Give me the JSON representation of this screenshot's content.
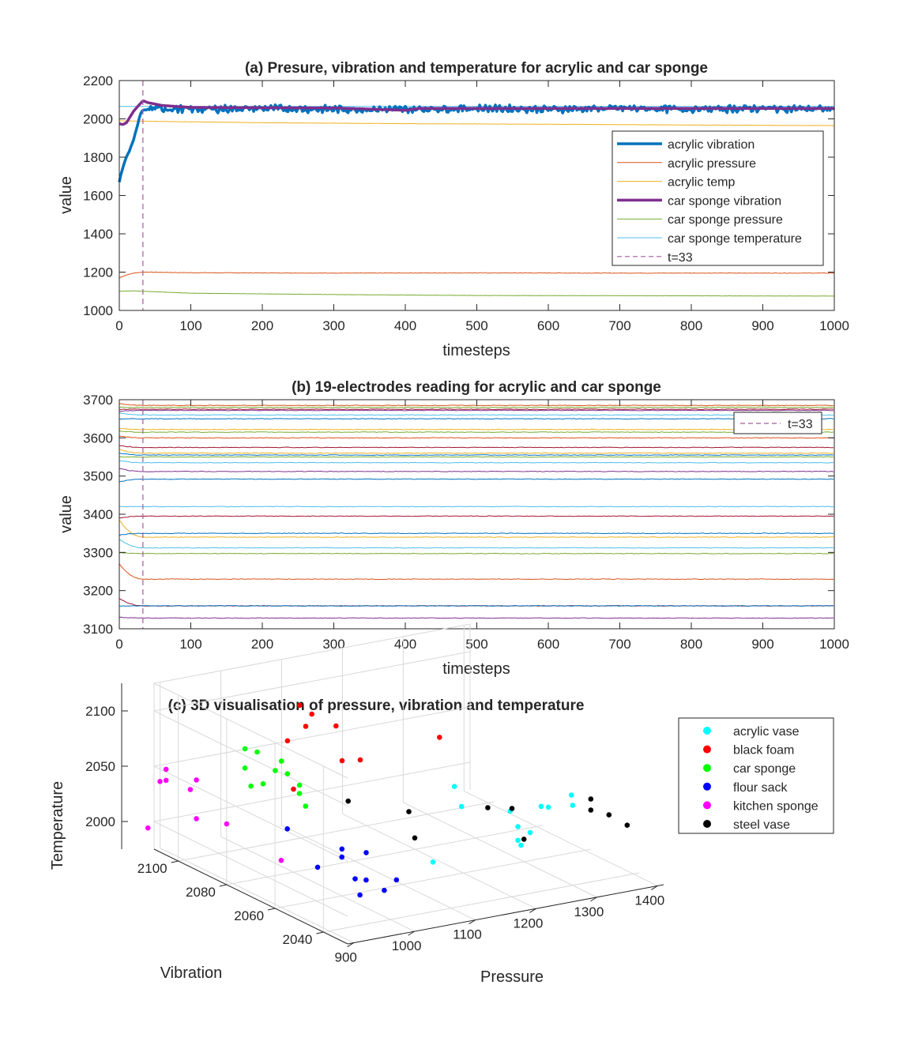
{
  "chart_data": [
    {
      "type": "line",
      "title": "(a) Presure, vibration and temperature for acrylic and car sponge",
      "xlabel": "timesteps",
      "ylabel": "value",
      "xlim": [
        0,
        1000
      ],
      "ylim": [
        1000,
        2200
      ],
      "xticks": [
        0,
        100,
        200,
        300,
        400,
        500,
        600,
        700,
        800,
        900,
        1000
      ],
      "yticks": [
        1000,
        1200,
        1400,
        1600,
        1800,
        2000,
        2200
      ],
      "legend_position": "right",
      "marker_line": {
        "x": 33,
        "label": "t=33",
        "color": "#a65ca0"
      },
      "series": [
        {
          "name": "acrylic vibration",
          "color": "#0072bd",
          "width": 3.5,
          "x": [
            0,
            5,
            10,
            15,
            20,
            25,
            30,
            33,
            40,
            50,
            100,
            200,
            300,
            400,
            500,
            600,
            700,
            800,
            900,
            1000
          ],
          "y": [
            1670,
            1750,
            1800,
            1840,
            1890,
            1960,
            2030,
            2045,
            2050,
            2055,
            2050,
            2055,
            2050,
            2050,
            2055,
            2050,
            2055,
            2050,
            2055,
            2050
          ],
          "noise": 14
        },
        {
          "name": "acrylic pressure",
          "color": "#d95319",
          "width": 1,
          "x": [
            0,
            10,
            20,
            33,
            100,
            300,
            500,
            700,
            1000
          ],
          "y": [
            1170,
            1185,
            1195,
            1200,
            1197,
            1195,
            1196,
            1195,
            1195
          ],
          "noise": 1
        },
        {
          "name": "acrylic temp",
          "color": "#edb120",
          "width": 1,
          "x": [
            0,
            33,
            200,
            400,
            600,
            800,
            1000
          ],
          "y": [
            1990,
            1988,
            1980,
            1975,
            1972,
            1968,
            1965
          ],
          "noise": 0.5
        },
        {
          "name": "car sponge vibration",
          "color": "#7e2f8e",
          "width": 3.5,
          "x": [
            0,
            5,
            10,
            20,
            33,
            40,
            60,
            100,
            200,
            300,
            400,
            420,
            500,
            600,
            700,
            800,
            900,
            1000
          ],
          "y": [
            1975,
            1970,
            1980,
            2040,
            2095,
            2085,
            2070,
            2060,
            2058,
            2057,
            2045,
            2055,
            2055,
            2055,
            2055,
            2055,
            2055,
            2055
          ],
          "noise": 0
        },
        {
          "name": "car sponge pressure",
          "color": "#77ac30",
          "width": 1,
          "x": [
            0,
            20,
            33,
            100,
            300,
            500,
            700,
            1000
          ],
          "y": [
            1100,
            1102,
            1100,
            1090,
            1083,
            1078,
            1077,
            1075
          ],
          "noise": 0.5
        },
        {
          "name": "car sponge temperature",
          "color": "#4dbeee",
          "width": 1,
          "x": [
            0,
            1000
          ],
          "y": [
            2065,
            2065
          ],
          "noise": 0
        }
      ]
    },
    {
      "type": "line",
      "title": "(b) 19-electrodes reading for acrylic and car sponge",
      "xlabel": "timesteps",
      "ylabel": "value",
      "xlim": [
        0,
        1000
      ],
      "ylim": [
        3100,
        3700
      ],
      "xticks": [
        0,
        100,
        200,
        300,
        400,
        500,
        600,
        700,
        800,
        900,
        1000
      ],
      "yticks": [
        3100,
        3200,
        3300,
        3400,
        3500,
        3600,
        3700
      ],
      "legend_position": "top-right",
      "marker_line": {
        "x": 33,
        "label": "t=33",
        "color": "#a65ca0"
      },
      "series": [
        {
          "color": "#d95319",
          "start": 3690,
          "end": 3685
        },
        {
          "color": "#77ac30",
          "start": 3680,
          "end": 3680
        },
        {
          "color": "#a2142f",
          "start": 3675,
          "end": 3675
        },
        {
          "color": "#7e2f8e",
          "start": 3670,
          "end": 3672
        },
        {
          "color": "#4dbeee",
          "start": 3665,
          "end": 3660
        },
        {
          "color": "#0072bd",
          "start": 3650,
          "end": 3650
        },
        {
          "color": "#edb120",
          "start": 3625,
          "end": 3622
        },
        {
          "color": "#77ac30",
          "start": 3618,
          "end": 3615
        },
        {
          "color": "#d95319",
          "start": 3605,
          "end": 3600
        },
        {
          "color": "#a2142f",
          "start": 3580,
          "end": 3575
        },
        {
          "color": "#edb120",
          "start": 3570,
          "end": 3560
        },
        {
          "color": "#0072bd",
          "start": 3560,
          "end": 3555
        },
        {
          "color": "#77ac30",
          "start": 3550,
          "end": 3550
        },
        {
          "color": "#4dbeee",
          "start": 3540,
          "end": 3535
        },
        {
          "color": "#7e2f8e",
          "start": 3520,
          "end": 3512
        },
        {
          "color": "#0072bd",
          "start": 3485,
          "end": 3492
        },
        {
          "color": "#4dbeee",
          "start": 3420,
          "end": 3420
        },
        {
          "color": "#a2142f",
          "start": 3390,
          "end": 3395
        },
        {
          "color": "#edb120",
          "start": 3385,
          "end": 3340
        },
        {
          "color": "#0072bd",
          "start": 3345,
          "end": 3350
        },
        {
          "color": "#4dbeee",
          "start": 3335,
          "end": 3312
        },
        {
          "color": "#77ac30",
          "start": 3300,
          "end": 3297
        },
        {
          "color": "#d95319",
          "start": 3270,
          "end": 3230
        },
        {
          "color": "#a2142f",
          "start": 3180,
          "end": 3160
        },
        {
          "color": "#0072bd",
          "start": 3160,
          "end": 3160
        },
        {
          "color": "#7e2f8e",
          "start": 3130,
          "end": 3128
        }
      ]
    },
    {
      "type": "scatter3d",
      "title": "(c) 3D visualisation of pressure, vibration and temperature",
      "xlabel": "Pressure",
      "ylabel": "Vibration",
      "zlabel": "Temperature",
      "xticks": [
        900,
        1000,
        1100,
        1200,
        1300,
        1400
      ],
      "yticks": [
        2040,
        2060,
        2080,
        2100
      ],
      "zticks": [
        2000,
        2050,
        2100
      ],
      "legend_position": "top-right",
      "series": [
        {
          "name": "acrylic vase",
          "color": "#00ffff",
          "points": [
            [
              1225,
              2070,
              2040
            ],
            [
              1185,
              2057,
              2040
            ],
            [
              1245,
              2052,
              2035
            ],
            [
              1230,
              2040,
              2030
            ],
            [
              1280,
              2048,
              2040
            ],
            [
              1320,
              2045,
              2040
            ],
            [
              1330,
              2048,
              2045
            ],
            [
              1300,
              2050,
              2035
            ],
            [
              1230,
              2045,
              2030
            ],
            [
              1210,
              2040,
              2025
            ],
            [
              1215,
              2040,
              2020
            ],
            [
              1110,
              2050,
              2005
            ]
          ]
        },
        {
          "name": "black foam",
          "color": "#ff0000",
          "points": [
            [
              1050,
              2090,
              2110
            ],
            [
              1070,
              2090,
              2100
            ],
            [
              1070,
              2080,
              2100
            ],
            [
              1030,
              2090,
              2080
            ],
            [
              1060,
              2090,
              2090
            ],
            [
              1070,
              2070,
              2080
            ],
            [
              1060,
              2075,
              2075
            ],
            [
              1000,
              2080,
              2050
            ],
            [
              1300,
              2095,
              2050
            ]
          ]
        },
        {
          "name": "car sponge",
          "color": "#00ff00",
          "points": [
            [
              960,
              2090,
              2080
            ],
            [
              980,
              2090,
              2075
            ],
            [
              970,
              2080,
              2070
            ],
            [
              1000,
              2085,
              2070
            ],
            [
              940,
              2085,
              2070
            ],
            [
              990,
              2080,
              2065
            ],
            [
              970,
              2070,
              2060
            ],
            [
              990,
              2075,
              2060
            ],
            [
              950,
              2080,
              2060
            ],
            [
              930,
              2080,
              2060
            ],
            [
              1000,
              2075,
              2040
            ]
          ]
        },
        {
          "name": "flour sack",
          "color": "#0000ff",
          "points": [
            [
              950,
              2070,
              2030
            ],
            [
              1000,
              2060,
              2010
            ],
            [
              1020,
              2065,
              2010
            ],
            [
              1040,
              2060,
              2010
            ],
            [
              1000,
              2050,
              2000
            ],
            [
              960,
              2060,
              2005
            ],
            [
              990,
              2052,
              2000
            ],
            [
              1010,
              2045,
              1995
            ],
            [
              970,
              2045,
              1995
            ],
            [
              1050,
              2050,
              1995
            ]
          ]
        },
        {
          "name": "kitchen sponge",
          "color": "#ff00ff",
          "points": [
            [
              870,
              2100,
              2060
            ],
            [
              880,
              2090,
              2060
            ],
            [
              870,
              2100,
              2050
            ],
            [
              860,
              2100,
              2050
            ],
            [
              890,
              2095,
              2045
            ],
            [
              890,
              2080,
              2030
            ],
            [
              880,
              2090,
              2025
            ],
            [
              920,
              2065,
              2010
            ],
            [
              840,
              2100,
              2010
            ]
          ]
        },
        {
          "name": "steel vase",
          "color": "#000000",
          "points": [
            [
              1090,
              2080,
              2030
            ],
            [
              1150,
              2070,
              2025
            ],
            [
              1120,
              2060,
              2015
            ],
            [
              1240,
              2060,
              2030
            ],
            [
              1330,
              2040,
              2050
            ],
            [
              1330,
              2040,
              2040
            ],
            [
              1340,
              2035,
              2040
            ],
            [
              1350,
              2030,
              2035
            ],
            [
              1240,
              2050,
              2040
            ],
            [
              1220,
              2040,
              2025
            ]
          ]
        }
      ]
    }
  ]
}
